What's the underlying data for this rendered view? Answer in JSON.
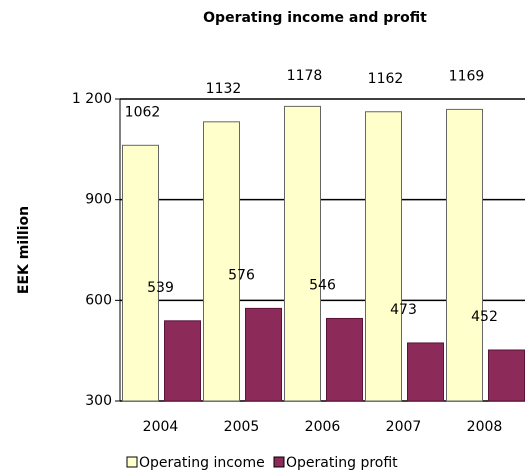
{
  "chart_data": {
    "type": "bar",
    "title": "Operating income and profit",
    "y_label": "EEK million",
    "categories": [
      "2004",
      "2005",
      "2006",
      "2007",
      "2008"
    ],
    "series": [
      {
        "name": "Operating income",
        "color": "#ffffcc",
        "values": [
          1062,
          1132,
          1178,
          1162,
          1169
        ]
      },
      {
        "name": "Operating profit",
        "color": "#8c2a5a",
        "values": [
          539,
          576,
          546,
          473,
          452
        ]
      }
    ],
    "ylim": [
      300,
      1200
    ],
    "yticks": [
      300,
      600,
      900,
      {
        "value": 1200,
        "label": "1 200"
      }
    ],
    "grid": true,
    "legend": "bottom"
  }
}
